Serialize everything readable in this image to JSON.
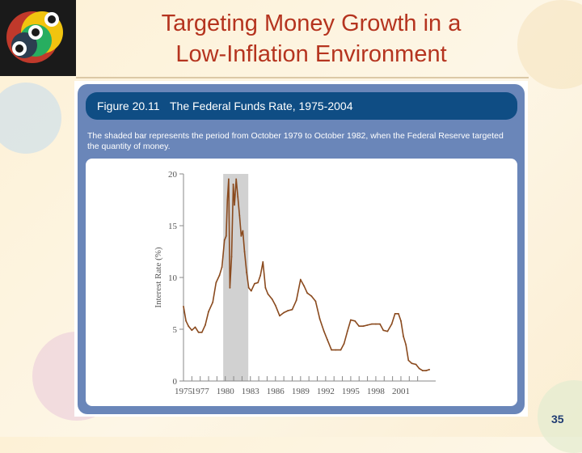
{
  "slide": {
    "title_line1": "Targeting Money Growth in a",
    "title_line2": "Low-Inflation Environment",
    "page_number": "35"
  },
  "figure": {
    "number": "Figure 20.11",
    "title": "The Federal Funds Rate, 1975-2004",
    "caption": "The shaded bar represents the period from October 1979 to October 1982, when the Federal Reserve targeted the quantity of money."
  },
  "colors": {
    "title": "#b5341f",
    "header_bar": "#0f4d84",
    "panel": "#6a86b9",
    "line": "#8a4a1e",
    "shade": "#d1d1d1"
  },
  "chart_data": {
    "type": "line",
    "title": "The Federal Funds Rate, 1975-2004",
    "xlabel": "",
    "ylabel": "Interest Rate (%)",
    "xlim": [
      1975,
      2004
    ],
    "ylim": [
      0,
      20
    ],
    "x_ticks": [
      1975,
      1977,
      1980,
      1983,
      1986,
      1989,
      1992,
      1995,
      1998,
      2001
    ],
    "x_tick_labels": [
      "1975",
      "1977",
      "1980",
      "1983",
      "1986",
      "1989",
      "1992",
      "1995",
      "1998",
      "2001"
    ],
    "y_ticks": [
      0,
      5,
      10,
      15,
      20
    ],
    "y_tick_labels": [
      "0",
      "5",
      "10",
      "15",
      "20"
    ],
    "shaded_region": {
      "from": 1979.75,
      "to": 1982.75
    },
    "series": [
      {
        "name": "Federal Funds Rate",
        "x": [
          1975.0,
          1975.3,
          1975.6,
          1976.0,
          1976.4,
          1976.8,
          1977.2,
          1977.6,
          1978.0,
          1978.5,
          1978.9,
          1979.3,
          1979.6,
          1979.9,
          1980.1,
          1980.25,
          1980.4,
          1980.55,
          1980.75,
          1980.95,
          1981.1,
          1981.3,
          1981.5,
          1981.7,
          1981.9,
          1982.1,
          1982.3,
          1982.55,
          1982.8,
          1983.1,
          1983.5,
          1983.9,
          1984.2,
          1984.5,
          1984.8,
          1985.1,
          1985.6,
          1986.0,
          1986.5,
          1987.0,
          1987.5,
          1988.0,
          1988.5,
          1989.0,
          1989.4,
          1989.8,
          1990.3,
          1990.8,
          1991.3,
          1991.8,
          1992.2,
          1992.7,
          1993.2,
          1993.8,
          1994.2,
          1994.6,
          1995.0,
          1995.5,
          1996.0,
          1996.5,
          1997.0,
          1997.5,
          1998.0,
          1998.5,
          1998.9,
          1999.4,
          1999.9,
          2000.3,
          2000.7,
          2001.0,
          2001.3,
          2001.6,
          2001.9,
          2002.3,
          2002.8,
          2003.2,
          2003.6,
          2004.0,
          2004.4
        ],
        "values": [
          7.2,
          5.8,
          5.3,
          4.9,
          5.2,
          4.7,
          4.7,
          5.4,
          6.7,
          7.6,
          9.5,
          10.2,
          11.0,
          13.6,
          14.0,
          17.5,
          19.5,
          9.0,
          12.0,
          19.0,
          17.0,
          19.5,
          17.8,
          16.0,
          14.0,
          14.5,
          12.5,
          10.5,
          9.0,
          8.7,
          9.4,
          9.5,
          10.2,
          11.5,
          9.0,
          8.4,
          7.9,
          7.3,
          6.3,
          6.6,
          6.8,
          6.9,
          7.8,
          9.8,
          9.2,
          8.5,
          8.2,
          7.7,
          6.0,
          4.8,
          4.0,
          3.0,
          3.0,
          3.0,
          3.6,
          4.8,
          5.9,
          5.8,
          5.3,
          5.3,
          5.4,
          5.5,
          5.5,
          5.5,
          4.9,
          4.8,
          5.5,
          6.5,
          6.5,
          5.8,
          4.3,
          3.5,
          2.0,
          1.7,
          1.6,
          1.2,
          1.0,
          1.0,
          1.1
        ]
      }
    ]
  }
}
